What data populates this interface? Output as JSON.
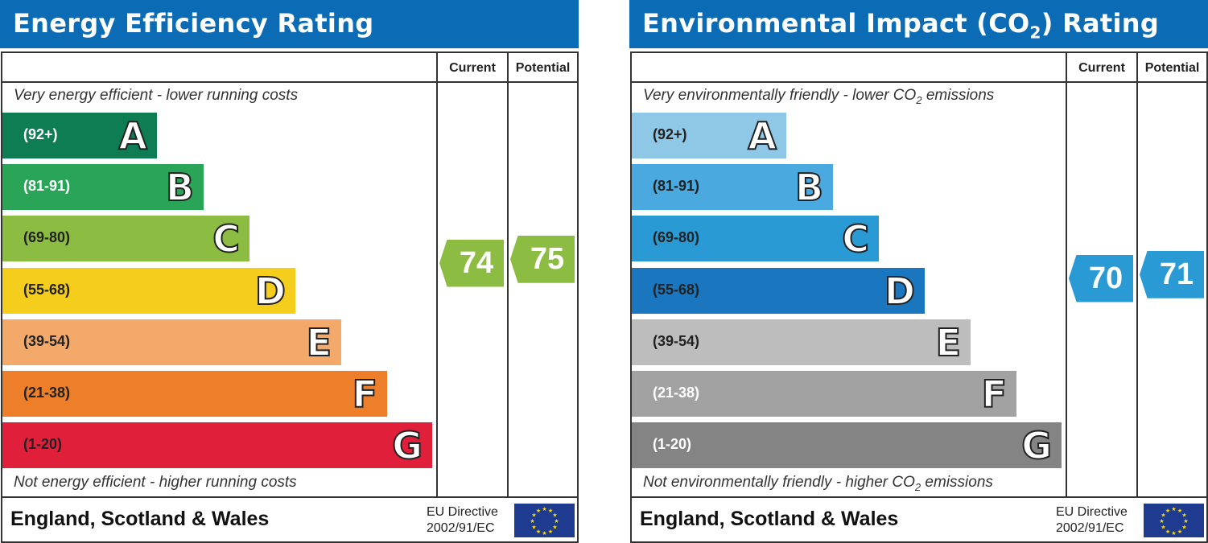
{
  "chart_data": [
    {
      "type": "bar",
      "title": "Energy Efficiency Rating",
      "column_headers": [
        "Current",
        "Potential"
      ],
      "top_note": "Very energy efficient - lower running costs",
      "bottom_note": "Not energy efficient - higher running costs",
      "bands": [
        {
          "letter": "A",
          "range": "(92+)",
          "min": 92,
          "max": 100,
          "color": "#0f7d53",
          "label_color": "#ffffff"
        },
        {
          "letter": "B",
          "range": "(81-91)",
          "min": 81,
          "max": 91,
          "color": "#2aa558",
          "label_color": "#ffffff"
        },
        {
          "letter": "C",
          "range": "(69-80)",
          "min": 69,
          "max": 80,
          "color": "#8cbd42",
          "label_color": "#222222"
        },
        {
          "letter": "D",
          "range": "(55-68)",
          "min": 55,
          "max": 68,
          "color": "#f5cd1c",
          "label_color": "#222222"
        },
        {
          "letter": "E",
          "range": "(39-54)",
          "min": 39,
          "max": 54,
          "color": "#f2a96a",
          "label_color": "#222222"
        },
        {
          "letter": "F",
          "range": "(21-38)",
          "min": 21,
          "max": 38,
          "color": "#ed7f2a",
          "label_color": "#222222"
        },
        {
          "letter": "G",
          "range": "(1-20)",
          "min": 1,
          "max": 20,
          "color": "#e0203b",
          "label_color": "#222222"
        }
      ],
      "current": {
        "value": "74",
        "color": "#8cbd42"
      },
      "potential": {
        "value": "75",
        "color": "#8cbd42"
      },
      "footer": {
        "country": "England, Scotland & Wales",
        "directive_line1": "EU Directive",
        "directive_line2": "2002/91/EC"
      }
    },
    {
      "type": "bar",
      "title": "Environmental Impact (CO2) Rating",
      "column_headers": [
        "Current",
        "Potential"
      ],
      "top_note": "Very environmentally friendly - lower CO2 emissions",
      "bottom_note": "Not environmentally friendly - higher CO2 emissions",
      "bands": [
        {
          "letter": "A",
          "range": "(92+)",
          "min": 92,
          "max": 100,
          "color": "#8fc7e7",
          "label_color": "#222222"
        },
        {
          "letter": "B",
          "range": "(81-91)",
          "min": 81,
          "max": 91,
          "color": "#4aa9de",
          "label_color": "#222222"
        },
        {
          "letter": "C",
          "range": "(69-80)",
          "min": 69,
          "max": 80,
          "color": "#2a9ad4",
          "label_color": "#222222"
        },
        {
          "letter": "D",
          "range": "(55-68)",
          "min": 55,
          "max": 68,
          "color": "#1a77bf",
          "label_color": "#222222"
        },
        {
          "letter": "E",
          "range": "(39-54)",
          "min": 39,
          "max": 54,
          "color": "#bdbdbd",
          "label_color": "#222222"
        },
        {
          "letter": "F",
          "range": "(21-38)",
          "min": 21,
          "max": 38,
          "color": "#a2a2a2",
          "label_color": "#ffffff"
        },
        {
          "letter": "G",
          "range": "(1-20)",
          "min": 1,
          "max": 20,
          "color": "#848484",
          "label_color": "#ffffff"
        }
      ],
      "current": {
        "value": "70",
        "color": "#2a9ad4"
      },
      "potential": {
        "value": "71",
        "color": "#2a9ad4"
      },
      "footer": {
        "country": "England, Scotland & Wales",
        "directive_line1": "EU Directive",
        "directive_line2": "2002/91/EC"
      }
    }
  ]
}
